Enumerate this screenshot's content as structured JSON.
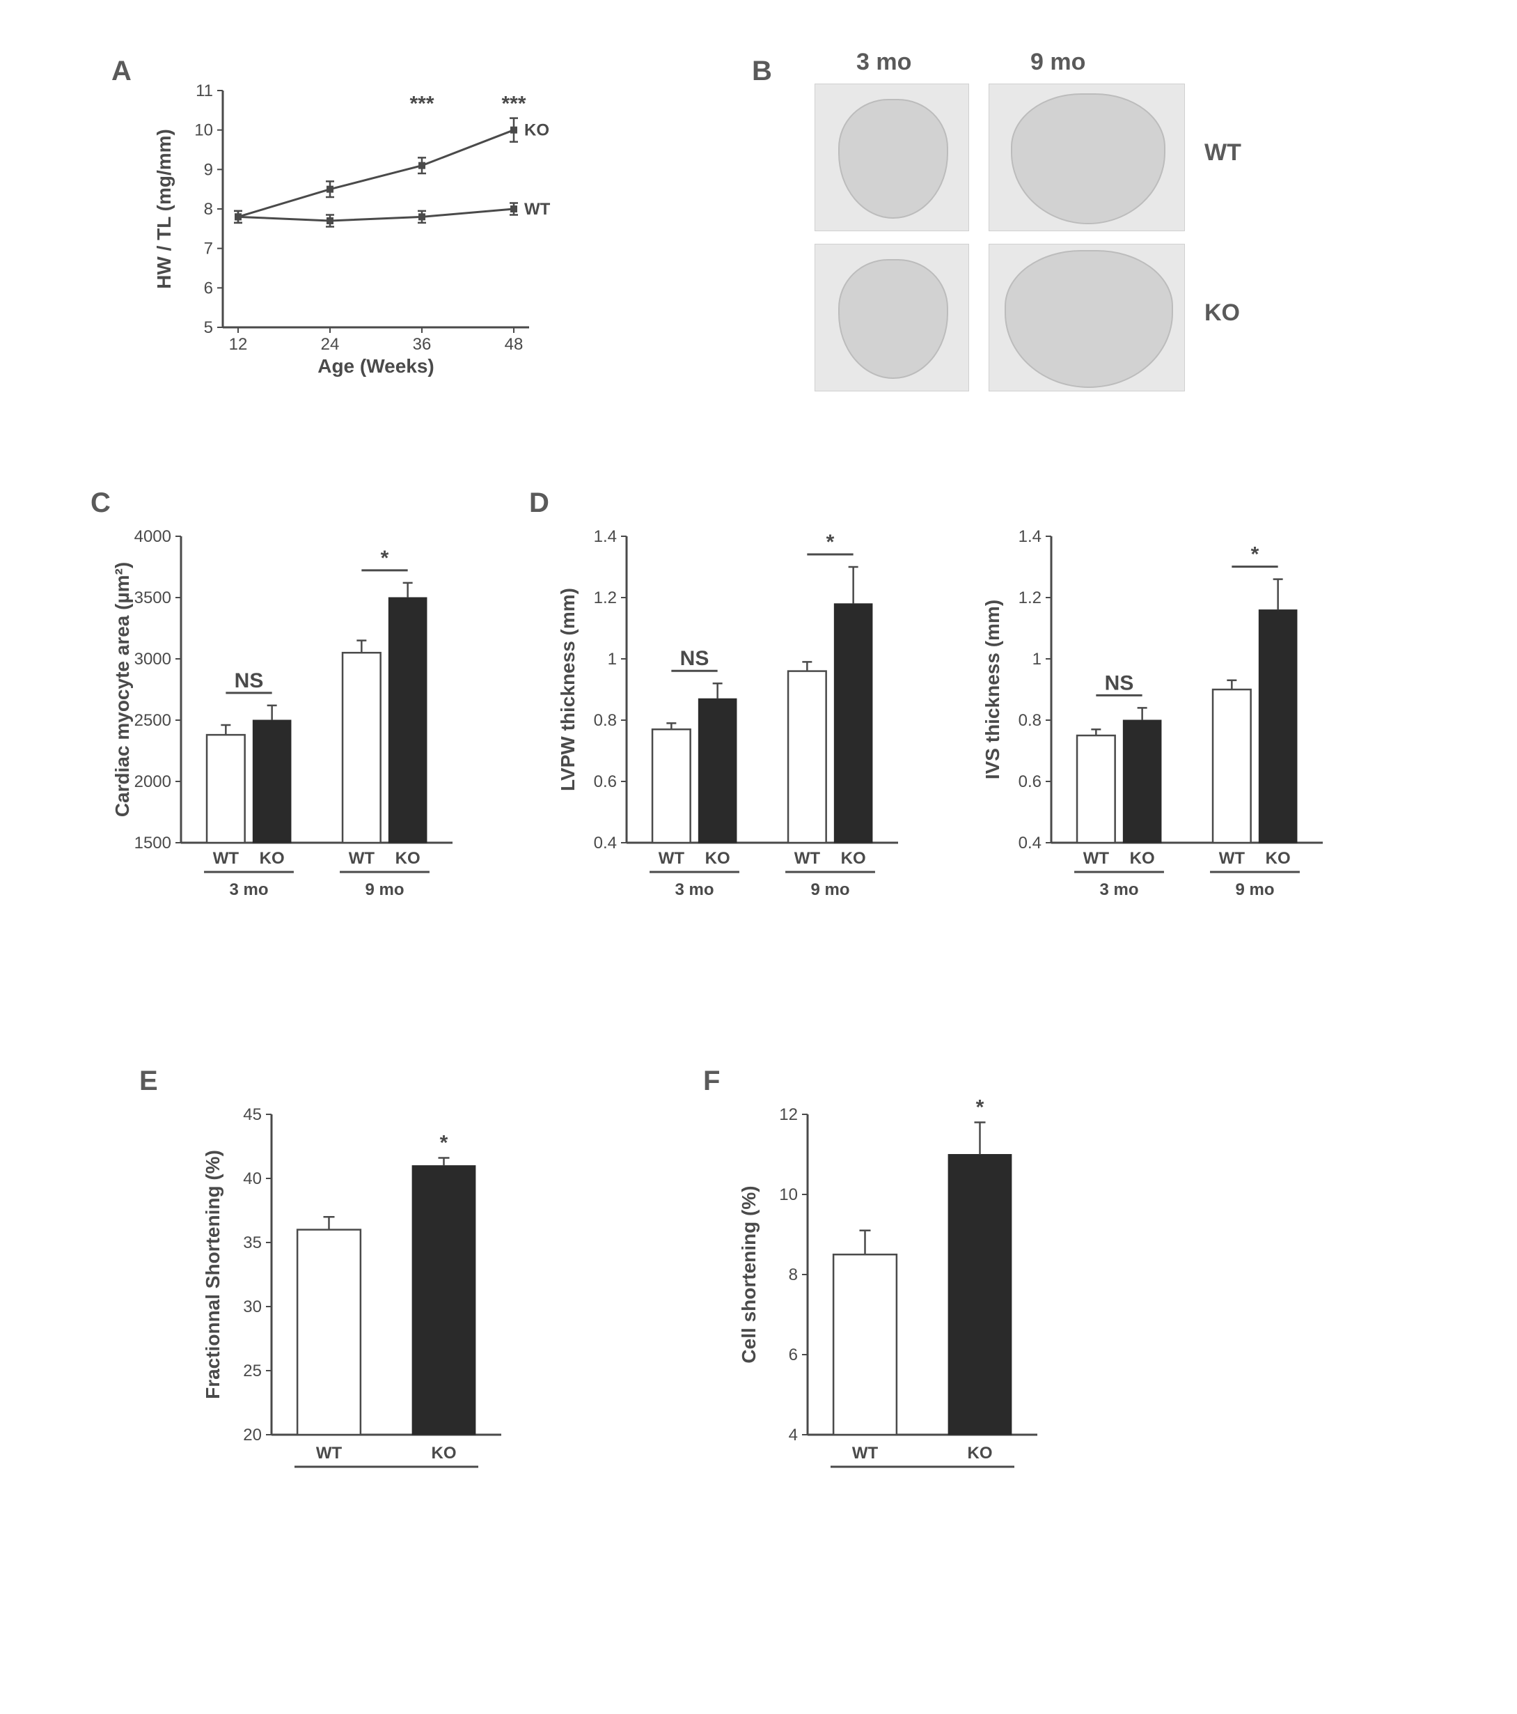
{
  "panelA": {
    "label": "A",
    "type": "line",
    "xlabel": "Age  (Weeks)",
    "ylabel": "HW / TL (mg/mm)",
    "xticks": [
      12,
      24,
      36,
      48
    ],
    "yticks": [
      5,
      6,
      7,
      8,
      9,
      10,
      11
    ],
    "ylim": [
      5,
      11
    ],
    "xlim": [
      10,
      50
    ],
    "series": [
      {
        "name": "KO",
        "label": "KO",
        "x": [
          12,
          24,
          36,
          48
        ],
        "y": [
          7.8,
          8.5,
          9.1,
          10.0
        ],
        "err": [
          0.15,
          0.2,
          0.2,
          0.3
        ],
        "marker": "square",
        "color": "#4a4a4a"
      },
      {
        "name": "WT",
        "label": "WT",
        "x": [
          12,
          24,
          36,
          48
        ],
        "y": [
          7.8,
          7.7,
          7.8,
          8.0
        ],
        "err": [
          0.15,
          0.15,
          0.15,
          0.15
        ],
        "marker": "square",
        "color": "#4a4a4a"
      }
    ],
    "sig": [
      {
        "x": 36,
        "text": "***"
      },
      {
        "x": 48,
        "text": "***"
      }
    ],
    "label_fontsize": 28,
    "tick_fontsize": 24,
    "line_color": "#4a4a4a"
  },
  "panelB": {
    "label": "B",
    "cols": [
      "3 mo",
      "9 mo"
    ],
    "rows": [
      "WT",
      "KO"
    ],
    "cell_bg": "#e8e8e8"
  },
  "panelC": {
    "label": "C",
    "type": "bar",
    "ylabel": "Cardiac myocyte area (µm²)",
    "yticks": [
      1500,
      2000,
      2500,
      3000,
      3500,
      4000
    ],
    "ylim": [
      1500,
      4000
    ],
    "groups": [
      "3 mo",
      "9 mo"
    ],
    "bars_per_group": [
      "WT",
      "KO"
    ],
    "values": [
      [
        2380,
        2500
      ],
      [
        3050,
        3500
      ]
    ],
    "errors": [
      [
        80,
        120
      ],
      [
        100,
        120
      ]
    ],
    "bar_colors": [
      "#ffffff",
      "#2a2a2a"
    ],
    "sig": [
      {
        "group": 0,
        "text": "NS"
      },
      {
        "group": 1,
        "text": "*"
      }
    ]
  },
  "panelD1": {
    "label": "D",
    "type": "bar",
    "ylabel": "LVPW thickness (mm)",
    "yticks": [
      0.4,
      0.6,
      0.8,
      1.0,
      1.2,
      1.4
    ],
    "ylim": [
      0.4,
      1.4
    ],
    "groups": [
      "3 mo",
      "9 mo"
    ],
    "bars_per_group": [
      "WT",
      "KO"
    ],
    "values": [
      [
        0.77,
        0.87
      ],
      [
        0.96,
        1.18
      ]
    ],
    "errors": [
      [
        0.02,
        0.05
      ],
      [
        0.03,
        0.12
      ]
    ],
    "bar_colors": [
      "#ffffff",
      "#2a2a2a"
    ],
    "sig": [
      {
        "group": 0,
        "text": "NS"
      },
      {
        "group": 1,
        "text": "*"
      }
    ]
  },
  "panelD2": {
    "type": "bar",
    "ylabel": "IVS thickness (mm)",
    "yticks": [
      0.4,
      0.6,
      0.8,
      1.0,
      1.2,
      1.4
    ],
    "ylim": [
      0.4,
      1.4
    ],
    "groups": [
      "3 mo",
      "9 mo"
    ],
    "bars_per_group": [
      "WT",
      "KO"
    ],
    "values": [
      [
        0.75,
        0.8
      ],
      [
        0.9,
        1.16
      ]
    ],
    "errors": [
      [
        0.02,
        0.04
      ],
      [
        0.03,
        0.1
      ]
    ],
    "bar_colors": [
      "#ffffff",
      "#2a2a2a"
    ],
    "sig": [
      {
        "group": 0,
        "text": "NS"
      },
      {
        "group": 1,
        "text": "*"
      }
    ]
  },
  "panelE": {
    "label": "E",
    "type": "bar",
    "ylabel": "Fractionnal Shortening  (%)",
    "yticks": [
      20,
      25,
      30,
      35,
      40,
      45
    ],
    "ylim": [
      20,
      45
    ],
    "bars": [
      "WT",
      "KO"
    ],
    "values": [
      36,
      41
    ],
    "errors": [
      1.0,
      0.6
    ],
    "bar_colors": [
      "#ffffff",
      "#2a2a2a"
    ],
    "sig": {
      "bar": 1,
      "text": "*"
    }
  },
  "panelF": {
    "label": "F",
    "type": "bar",
    "ylabel": "Cell shortening (%)",
    "yticks": [
      4,
      6,
      8,
      10,
      12
    ],
    "ylim": [
      4,
      12
    ],
    "bars": [
      "WT",
      "KO"
    ],
    "values": [
      8.5,
      11.0
    ],
    "errors": [
      0.6,
      0.8
    ],
    "bar_colors": [
      "#ffffff",
      "#2a2a2a"
    ],
    "sig": {
      "bar": 1,
      "text": "*"
    }
  },
  "colors": {
    "axis": "#4a4a4a",
    "text": "#4a4a4a",
    "bar_open": "#ffffff",
    "bar_fill": "#2a2a2a",
    "bg": "#ffffff"
  }
}
